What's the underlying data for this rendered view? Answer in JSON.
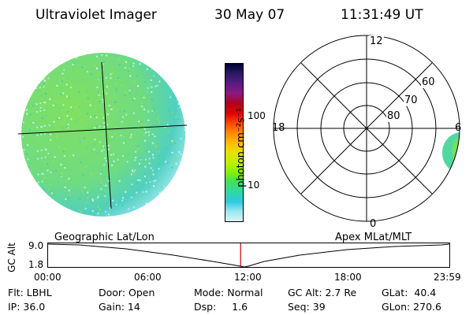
{
  "header": {
    "instrument": "Ultraviolet Imager",
    "date": "30 May 07",
    "time": "11:31:49 UT"
  },
  "colorbar": {
    "unit_label": "photon cm⁻²s⁻¹",
    "ticks": [
      {
        "label": "100",
        "value": 100
      },
      {
        "label": "10",
        "value": 10
      }
    ],
    "colors": [
      "#000033",
      "#2a1a66",
      "#5a1a80",
      "#8a1a80",
      "#b00020",
      "#e00000",
      "#ff4400",
      "#ff8800",
      "#ffbb00",
      "#e8e000",
      "#c0f000",
      "#88f000",
      "#40e060",
      "#30d8a0",
      "#30c8e0",
      "#9ae8f0",
      "#d8f4f8"
    ]
  },
  "polar_plot": {
    "mlt_labels": {
      "top": "12",
      "left": "18",
      "right": "6",
      "bottom": "0"
    },
    "lat_labels": [
      "60",
      "70",
      "80"
    ]
  },
  "timeline": {
    "left_caption": "Geographic Lat/Lon",
    "right_caption": "Apex MLat/MLT",
    "y_axis_label": "GC Alt",
    "y_ticks": [
      "9.0",
      "1.8"
    ],
    "x_ticks": [
      "00:00",
      "06:00",
      "12:00",
      "18:00",
      "23:59"
    ],
    "current_time_marker": "11:31:49",
    "marker_color": "#cc0000"
  },
  "status": {
    "row1": {
      "flt": "Flt: LBHL",
      "door": "Door: Open",
      "mode": "Mode: Normal",
      "gc_alt": "GC Alt: 2.7 Re",
      "glat": "GLat:  40.4"
    },
    "row2": {
      "ip": "IP: 36.0",
      "gain": "Gain: 14",
      "dsp": "Dsp:     1.6",
      "seq": "Seq: 39",
      "glon": "GLon: 270.6"
    }
  }
}
